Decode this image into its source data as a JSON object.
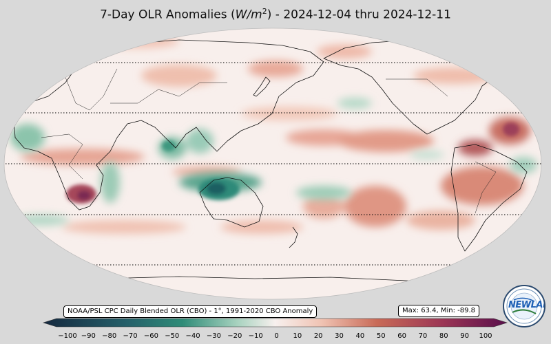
{
  "title": {
    "prefix": "7-Day OLR Anomalies (",
    "unit_main": "W/m",
    "unit_exp": "2",
    "suffix": ") - 2024-12-04 thru 2024-12-11"
  },
  "source_label": "NOAA/PSL CPC Daily Blended OLR (CBO) - 1°, 1991-2020 CBO Anomaly",
  "stats_label": "Max: 63.4,  Min: -89.8",
  "colorbar": {
    "ticks": [
      "−100",
      "−90",
      "−80",
      "−70",
      "−60",
      "−50",
      "−40",
      "−30",
      "−20",
      "−10",
      "0",
      "10",
      "20",
      "30",
      "40",
      "50",
      "60",
      "70",
      "80",
      "90",
      "100"
    ],
    "colors": {
      "min": "#15293f",
      "cool_mid": "#2f8c78",
      "cool_light": "#cfe6da",
      "neutral": "#f7f0ee",
      "warm_light": "#f0c3b3",
      "warm_mid": "#c86a57",
      "max": "#5a0f4c"
    }
  },
  "logo": {
    "text": "NEWLAB",
    "ring_text": "NOAA PHYSICAL SCIENCES LABORATORY"
  }
}
